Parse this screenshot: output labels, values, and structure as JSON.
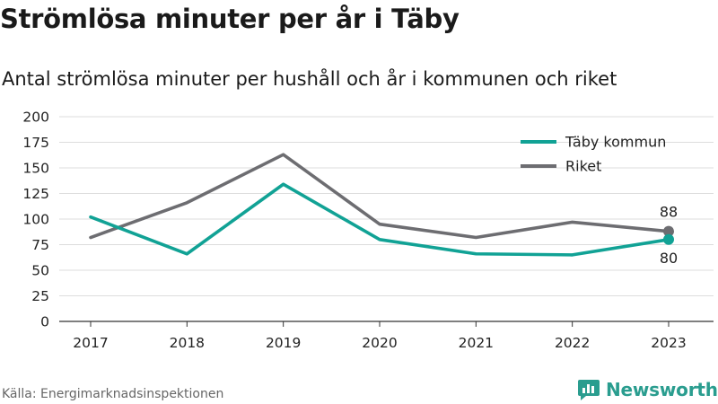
{
  "title": "Strömlösa minuter per år i Täby",
  "subtitle": "Antal strömlösa minuter per hushåll och år i kommunen och riket",
  "source": "Källa: Energimarknadsinspektionen",
  "brand": {
    "name": "Newsworthy",
    "icon": "newsworthy-logo-icon",
    "color": "#2a9d8f"
  },
  "chart_data": {
    "type": "line",
    "x": [
      "2017",
      "2018",
      "2019",
      "2020",
      "2021",
      "2022",
      "2023"
    ],
    "ylim": [
      0,
      200
    ],
    "yticks": [
      0,
      25,
      50,
      75,
      100,
      125,
      150,
      175,
      200
    ],
    "grid": true,
    "legend_position": "top-right",
    "series": [
      {
        "name": "Täby kommun",
        "color": "#11a295",
        "values": [
          102,
          66,
          134,
          80,
          66,
          65,
          80
        ],
        "end_label": "80"
      },
      {
        "name": "Riket",
        "color": "#6d6d71",
        "values": [
          82,
          116,
          163,
          95,
          82,
          97,
          88
        ],
        "end_label": "88"
      }
    ]
  }
}
